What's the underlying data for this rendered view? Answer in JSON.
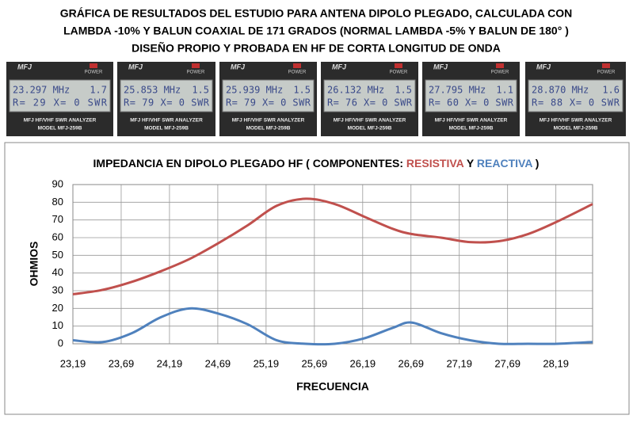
{
  "header": {
    "lines": [
      "GRÁFICA DE RESULTADOS DEL ESTUDIO PARA ANTENA DIPOLO PLEGADO, CALCULADA CON",
      "LAMBDA -10% Y BALUN COAXIAL DE 171 GRADOS (NORMAL LAMBDA -5% Y BALUN DE 180° )",
      "DISEÑO PROPIO Y PROBADA EN HF DE CORTA LONGITUD DE ONDA"
    ]
  },
  "photos": {
    "brand": "MFJ",
    "power": "POWER",
    "model_line": "MFJ HF/VHF SWR ANALYZER",
    "model": "MODEL MFJ-259B",
    "panels": [
      {
        "frequency": "23.297 MHz",
        "swr": "1.7",
        "reading": "R= 29 X= 0 SWR"
      },
      {
        "frequency": "25.853 MHz",
        "swr": "1.5",
        "reading": "R= 79 X= 0 SWR"
      },
      {
        "frequency": "25.939 MHz",
        "swr": "1.5",
        "reading": "R= 79 X= 0 SWR"
      },
      {
        "frequency": "26.132 MHz",
        "swr": "1.5",
        "reading": "R= 76 X= 0 SWR"
      },
      {
        "frequency": "27.795 MHz",
        "swr": "1.1",
        "reading": "R= 60 X= 0 SWR"
      },
      {
        "frequency": "28.870 MHz",
        "swr": "1.6",
        "reading": "R= 88 X= 0 SWR"
      }
    ]
  },
  "chart_data": {
    "type": "line",
    "title_start": "IMPEDANCIA EN DIPOLO PLEGADO HF ( COMPONENTES: ",
    "title_join": " Y ",
    "title_end": " )",
    "x_label": "FRECUENCIA",
    "y_label": "OHMIOS",
    "x": [
      23.19,
      23.5,
      23.8,
      24.1,
      24.4,
      24.7,
      25.0,
      25.3,
      25.6,
      25.9,
      26.2,
      26.5,
      26.7,
      27.0,
      27.3,
      27.6,
      27.9,
      28.2,
      28.57
    ],
    "series": [
      {
        "name": "RESISTIVA",
        "color": "#c0504d",
        "values": [
          28,
          30.5,
          35,
          41,
          48,
          57,
          67,
          78,
          82,
          79,
          72,
          65,
          62,
          60,
          57.5,
          58,
          62,
          69,
          79
        ]
      },
      {
        "name": "REACTIVA",
        "color": "#4f81bd",
        "values": [
          2,
          1,
          6,
          15,
          20,
          17,
          11,
          2,
          0,
          0,
          3,
          9,
          12,
          6,
          2,
          0,
          0,
          0,
          1
        ]
      }
    ],
    "xlim": [
      23.19,
      28.57
    ],
    "xticks": [
      {
        "value": 23.19,
        "label": "23,19"
      },
      {
        "value": 23.69,
        "label": "23,69"
      },
      {
        "value": 24.19,
        "label": "24,19"
      },
      {
        "value": 24.69,
        "label": "24,69"
      },
      {
        "value": 25.19,
        "label": "25,19"
      },
      {
        "value": 25.69,
        "label": "25,69"
      },
      {
        "value": 26.19,
        "label": "26,19"
      },
      {
        "value": 26.69,
        "label": "26,69"
      },
      {
        "value": 27.19,
        "label": "27,19"
      },
      {
        "value": 27.69,
        "label": "27,69"
      },
      {
        "value": 28.19,
        "label": "28,19"
      }
    ],
    "ylim": [
      0,
      90
    ],
    "yticks": [
      0,
      10,
      20,
      30,
      40,
      50,
      60,
      70,
      80,
      90
    ],
    "grid": true
  }
}
